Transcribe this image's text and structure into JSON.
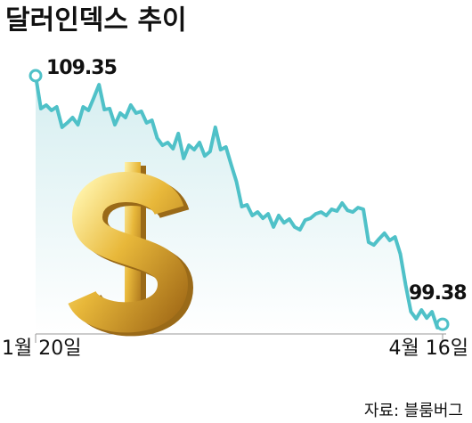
{
  "chart_data": {
    "type": "line",
    "title": "달러인덱스 추이",
    "source": "자료: 블룸버그",
    "categories": [
      "1월 20일",
      null,
      null,
      null,
      null,
      null,
      null,
      null,
      null,
      null,
      null,
      null,
      null,
      null,
      null,
      null,
      null,
      null,
      null,
      null,
      null,
      null,
      null,
      null,
      null,
      null,
      null,
      null,
      null,
      null,
      null,
      null,
      null,
      null,
      null,
      null,
      null,
      null,
      null,
      null,
      null,
      null,
      null,
      null,
      null,
      null,
      null,
      null,
      null,
      null,
      null,
      null,
      null,
      null,
      null,
      null,
      null,
      null,
      null,
      null,
      null,
      null,
      null,
      null,
      null,
      null,
      null,
      null,
      null,
      null,
      null,
      null,
      null,
      null,
      null,
      null,
      null,
      "4월 16일"
    ],
    "values": [
      109.35,
      108.03,
      108.17,
      107.96,
      108.1,
      107.28,
      107.46,
      107.67,
      107.38,
      108.1,
      107.96,
      108.46,
      108.99,
      107.99,
      108.03,
      107.38,
      107.85,
      107.67,
      108.17,
      107.85,
      107.92,
      107.46,
      107.56,
      106.85,
      106.56,
      106.67,
      106.42,
      107.03,
      106.03,
      106.56,
      106.38,
      106.67,
      106.13,
      106.31,
      107.28,
      106.38,
      106.49,
      105.78,
      105.1,
      104.1,
      104.17,
      103.74,
      103.88,
      103.63,
      103.81,
      103.28,
      103.74,
      103.45,
      103.6,
      103.28,
      103.17,
      103.56,
      103.63,
      103.81,
      103.88,
      103.74,
      103.99,
      103.92,
      104.24,
      103.95,
      103.88,
      104.06,
      103.99,
      102.67,
      102.56,
      102.81,
      103.03,
      102.74,
      102.88,
      102.2,
      100.95,
      99.88,
      99.6,
      99.95,
      99.63,
      99.88,
      99.24,
      99.38
    ],
    "color": "#4fc1c8"
  }
}
